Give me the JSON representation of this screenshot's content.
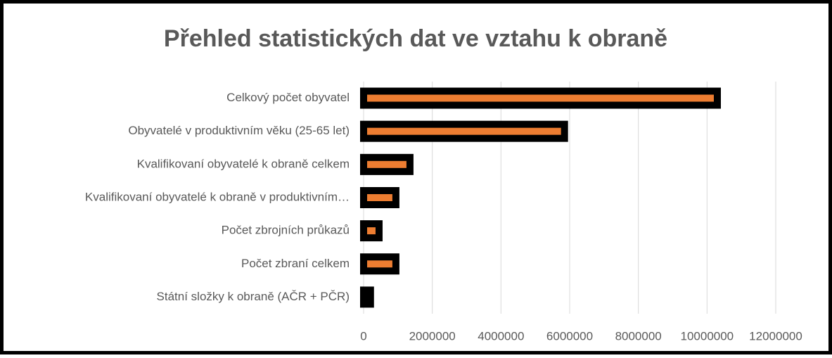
{
  "chart_data": {
    "type": "bar",
    "orientation": "horizontal",
    "title": "Přehled statistických dat ve vztahu k obraně",
    "categories": [
      "Celkový počet obyvatel",
      "Obyvatelé v produktivním věku (25-65 let)",
      "Kvalifikovaní obyvatelé k obraně celkem",
      "Kvalifikovaní obyvatelé k obraně v produktivním…",
      "Počet zbrojních průkazů",
      "Počet zbraní celkem",
      "Státní složky k obraně (AČR + PČR)"
    ],
    "values": [
      10300000,
      5850000,
      1350000,
      940000,
      450000,
      940000,
      200000
    ],
    "color": "#ed7d31",
    "edge_color": "#000000",
    "xlim": [
      0,
      12000000
    ],
    "xticks": [
      0,
      2000000,
      4000000,
      6000000,
      8000000,
      10000000,
      12000000
    ],
    "grid": true
  }
}
